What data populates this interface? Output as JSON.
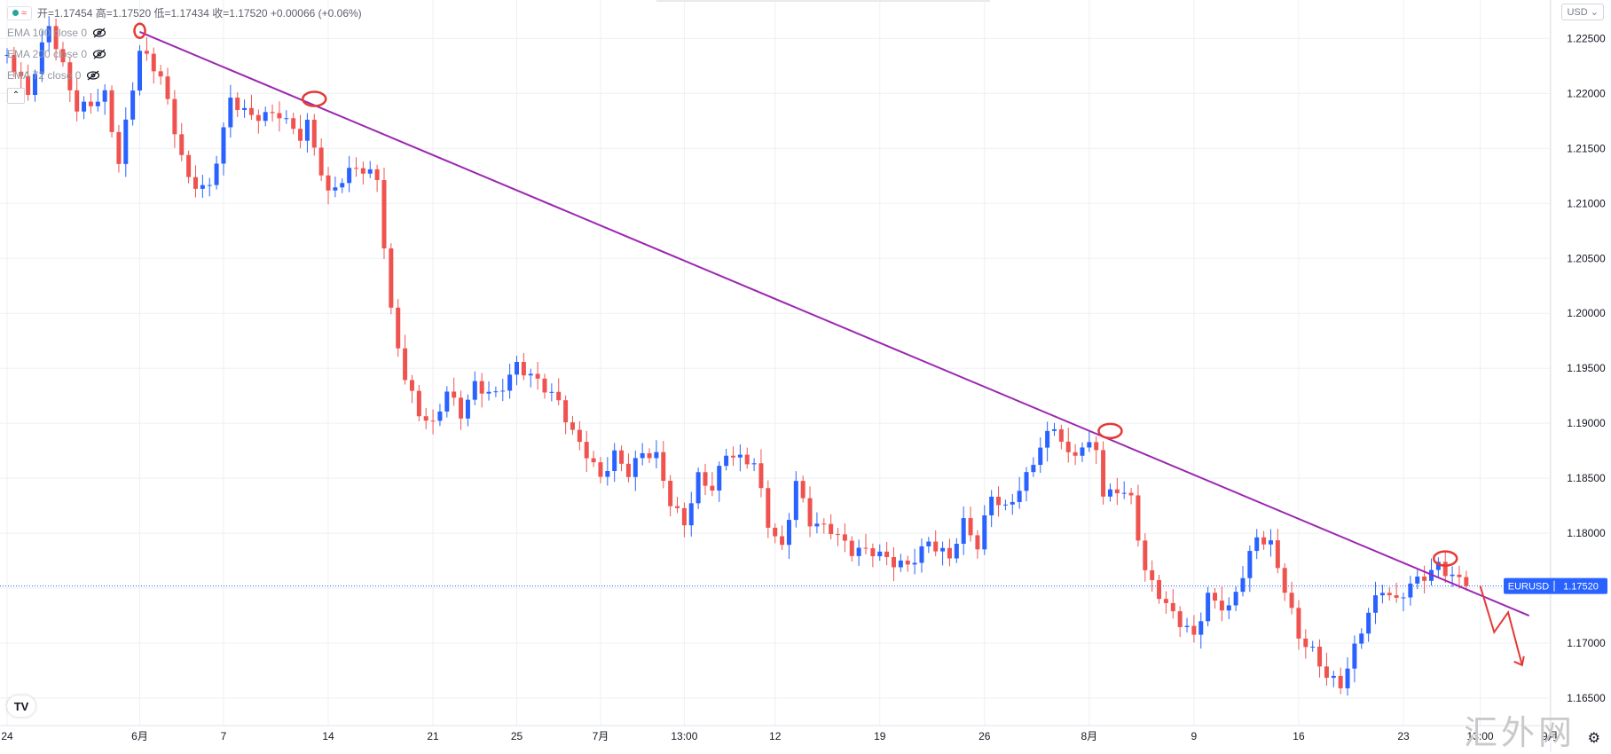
{
  "header": {
    "status_icon": "green-dot-icon",
    "wave_icon": "wave-icon",
    "ohlc_text": "开=1.17454 高=1.17520 低=1.17434 收=1.17520 +0.00066 (+0.06%)"
  },
  "indicators": [
    {
      "label": "EMA 100 close 0",
      "icon": "eye-off-icon"
    },
    {
      "label": "EMA 200 close 0",
      "icon": "eye-off-icon"
    },
    {
      "label": "EMA 72 close 0",
      "icon": "eye-off-icon"
    }
  ],
  "currency_button": "USD",
  "symbol_tag": "EURUSD",
  "last_price": "1.17520",
  "watermark": "汇外网",
  "logo": "TV",
  "colors": {
    "up": "#2962ff",
    "down": "#ef5350",
    "trendline": "#9c27b0",
    "grid": "#eef0f3",
    "axis_text": "#131722",
    "price_tag": "#2962ff",
    "marker": "#e53935",
    "arrow": "#e53935"
  },
  "chart_data": {
    "type": "candlestick",
    "symbol": "EURUSD",
    "ylim": [
      1.1625,
      1.2285
    ],
    "y_ticks": [
      1.225,
      1.22,
      1.215,
      1.21,
      1.205,
      1.2,
      1.195,
      1.19,
      1.185,
      1.18,
      1.175,
      1.17,
      1.165
    ],
    "y_tick_labels": [
      "1.22500",
      "1.22000",
      "1.21500",
      "1.21000",
      "1.20500",
      "1.20000",
      "1.19500",
      "1.19000",
      "1.18500",
      "1.18000",
      "1.17500",
      "1.17000",
      "1.16500"
    ],
    "x_ticks": [
      {
        "label": "24",
        "index": 0
      },
      {
        "label": "6月",
        "index": 19
      },
      {
        "label": "7",
        "index": 31
      },
      {
        "label": "14",
        "index": 46
      },
      {
        "label": "21",
        "index": 61
      },
      {
        "label": "25",
        "index": 73
      },
      {
        "label": "7月",
        "index": 85
      },
      {
        "label": "13:00",
        "index": 97
      },
      {
        "label": "12",
        "index": 110
      },
      {
        "label": "19",
        "index": 125
      },
      {
        "label": "26",
        "index": 140
      },
      {
        "label": "8月",
        "index": 155
      },
      {
        "label": "9",
        "index": 170
      },
      {
        "label": "16",
        "index": 185
      },
      {
        "label": "23",
        "index": 200
      },
      {
        "label": "13:00",
        "index": 211
      },
      {
        "label": "9月",
        "index": 221
      }
    ],
    "anchors": [
      [
        0,
        1.2235
      ],
      [
        3,
        1.2195
      ],
      [
        6,
        1.226
      ],
      [
        10,
        1.219
      ],
      [
        14,
        1.22
      ],
      [
        16,
        1.2135
      ],
      [
        19,
        1.2235
      ],
      [
        22,
        1.2215
      ],
      [
        26,
        1.2125
      ],
      [
        29,
        1.2115
      ],
      [
        32,
        1.219
      ],
      [
        35,
        1.2175
      ],
      [
        39,
        1.2185
      ],
      [
        42,
        1.2165
      ],
      [
        43,
        1.2175
      ],
      [
        46,
        1.2105
      ],
      [
        50,
        1.213
      ],
      [
        53,
        1.2125
      ],
      [
        55,
        1.2005
      ],
      [
        57,
        1.1945
      ],
      [
        59,
        1.191
      ],
      [
        61,
        1.1895
      ],
      [
        63,
        1.1925
      ],
      [
        65,
        1.1905
      ],
      [
        67,
        1.1935
      ],
      [
        70,
        1.193
      ],
      [
        73,
        1.1955
      ],
      [
        76,
        1.1935
      ],
      [
        79,
        1.1915
      ],
      [
        81,
        1.189
      ],
      [
        83,
        1.1875
      ],
      [
        85,
        1.1855
      ],
      [
        87,
        1.1875
      ],
      [
        89,
        1.1855
      ],
      [
        91,
        1.187
      ],
      [
        93,
        1.1865
      ],
      [
        95,
        1.1825
      ],
      [
        97,
        1.181
      ],
      [
        99,
        1.1855
      ],
      [
        101,
        1.1845
      ],
      [
        103,
        1.1875
      ],
      [
        105,
        1.1865
      ],
      [
        107,
        1.186
      ],
      [
        109,
        1.1805
      ],
      [
        111,
        1.1785
      ],
      [
        113,
        1.185
      ],
      [
        115,
        1.1815
      ],
      [
        118,
        1.1805
      ],
      [
        121,
        1.178
      ],
      [
        124,
        1.178
      ],
      [
        127,
        1.1775
      ],
      [
        129,
        1.1775
      ],
      [
        132,
        1.1795
      ],
      [
        135,
        1.1775
      ],
      [
        137,
        1.1805
      ],
      [
        139,
        1.1785
      ],
      [
        141,
        1.1835
      ],
      [
        143,
        1.1825
      ],
      [
        146,
        1.1855
      ],
      [
        148,
        1.188
      ],
      [
        150,
        1.1895
      ],
      [
        152,
        1.1865
      ],
      [
        154,
        1.1875
      ],
      [
        156,
        1.188
      ],
      [
        157,
        1.1835
      ],
      [
        159,
        1.1845
      ],
      [
        161,
        1.1835
      ],
      [
        163,
        1.1765
      ],
      [
        166,
        1.173
      ],
      [
        168,
        1.1715
      ],
      [
        170,
        1.1705
      ],
      [
        172,
        1.1745
      ],
      [
        175,
        1.1735
      ],
      [
        177,
        1.1765
      ],
      [
        179,
        1.1795
      ],
      [
        181,
        1.1785
      ],
      [
        183,
        1.1745
      ],
      [
        185,
        1.1705
      ],
      [
        187,
        1.1695
      ],
      [
        189,
        1.1675
      ],
      [
        191,
        1.1665
      ],
      [
        193,
        1.1695
      ],
      [
        195,
        1.1725
      ],
      [
        197,
        1.1745
      ],
      [
        199,
        1.1735
      ],
      [
        201,
        1.1755
      ],
      [
        203,
        1.1765
      ],
      [
        205,
        1.1775
      ],
      [
        207,
        1.1762
      ],
      [
        209,
        1.1752
      ]
    ],
    "last_price": 1.1752,
    "trendline": {
      "from": {
        "index": 19,
        "price": 1.2256
      },
      "to": {
        "index": 218,
        "price": 1.1725
      }
    },
    "touch_markers": [
      {
        "index": 19,
        "price": 1.2257
      },
      {
        "index": 44,
        "price": 1.2195
      },
      {
        "index": 158,
        "price": 1.1893
      },
      {
        "index": 206,
        "price": 1.1777
      }
    ],
    "projection": [
      [
        211,
        1.1752
      ],
      [
        213,
        1.171
      ],
      [
        215,
        1.1728
      ],
      [
        217,
        1.168
      ]
    ],
    "grid": true
  }
}
